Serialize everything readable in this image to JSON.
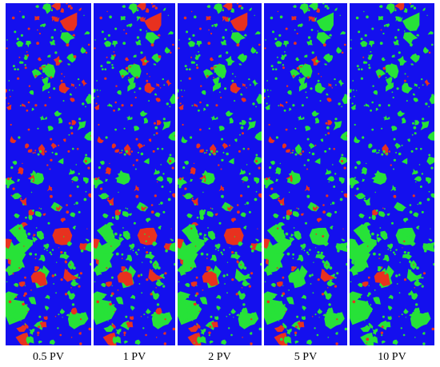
{
  "figure": {
    "panels": [
      {
        "label": "0.5 PV",
        "seed": 11,
        "red_level": 1.0
      },
      {
        "label": "1 PV",
        "seed": 11,
        "red_level": 0.8
      },
      {
        "label": "2 PV",
        "seed": 11,
        "red_level": 0.65
      },
      {
        "label": "5 PV",
        "seed": 11,
        "red_level": 0.55
      },
      {
        "label": "10 PV",
        "seed": 11,
        "red_level": 0.25
      }
    ],
    "colors": {
      "background": "#1410ee",
      "phase_green": "#27e238",
      "phase_red": "#e8311f"
    }
  }
}
